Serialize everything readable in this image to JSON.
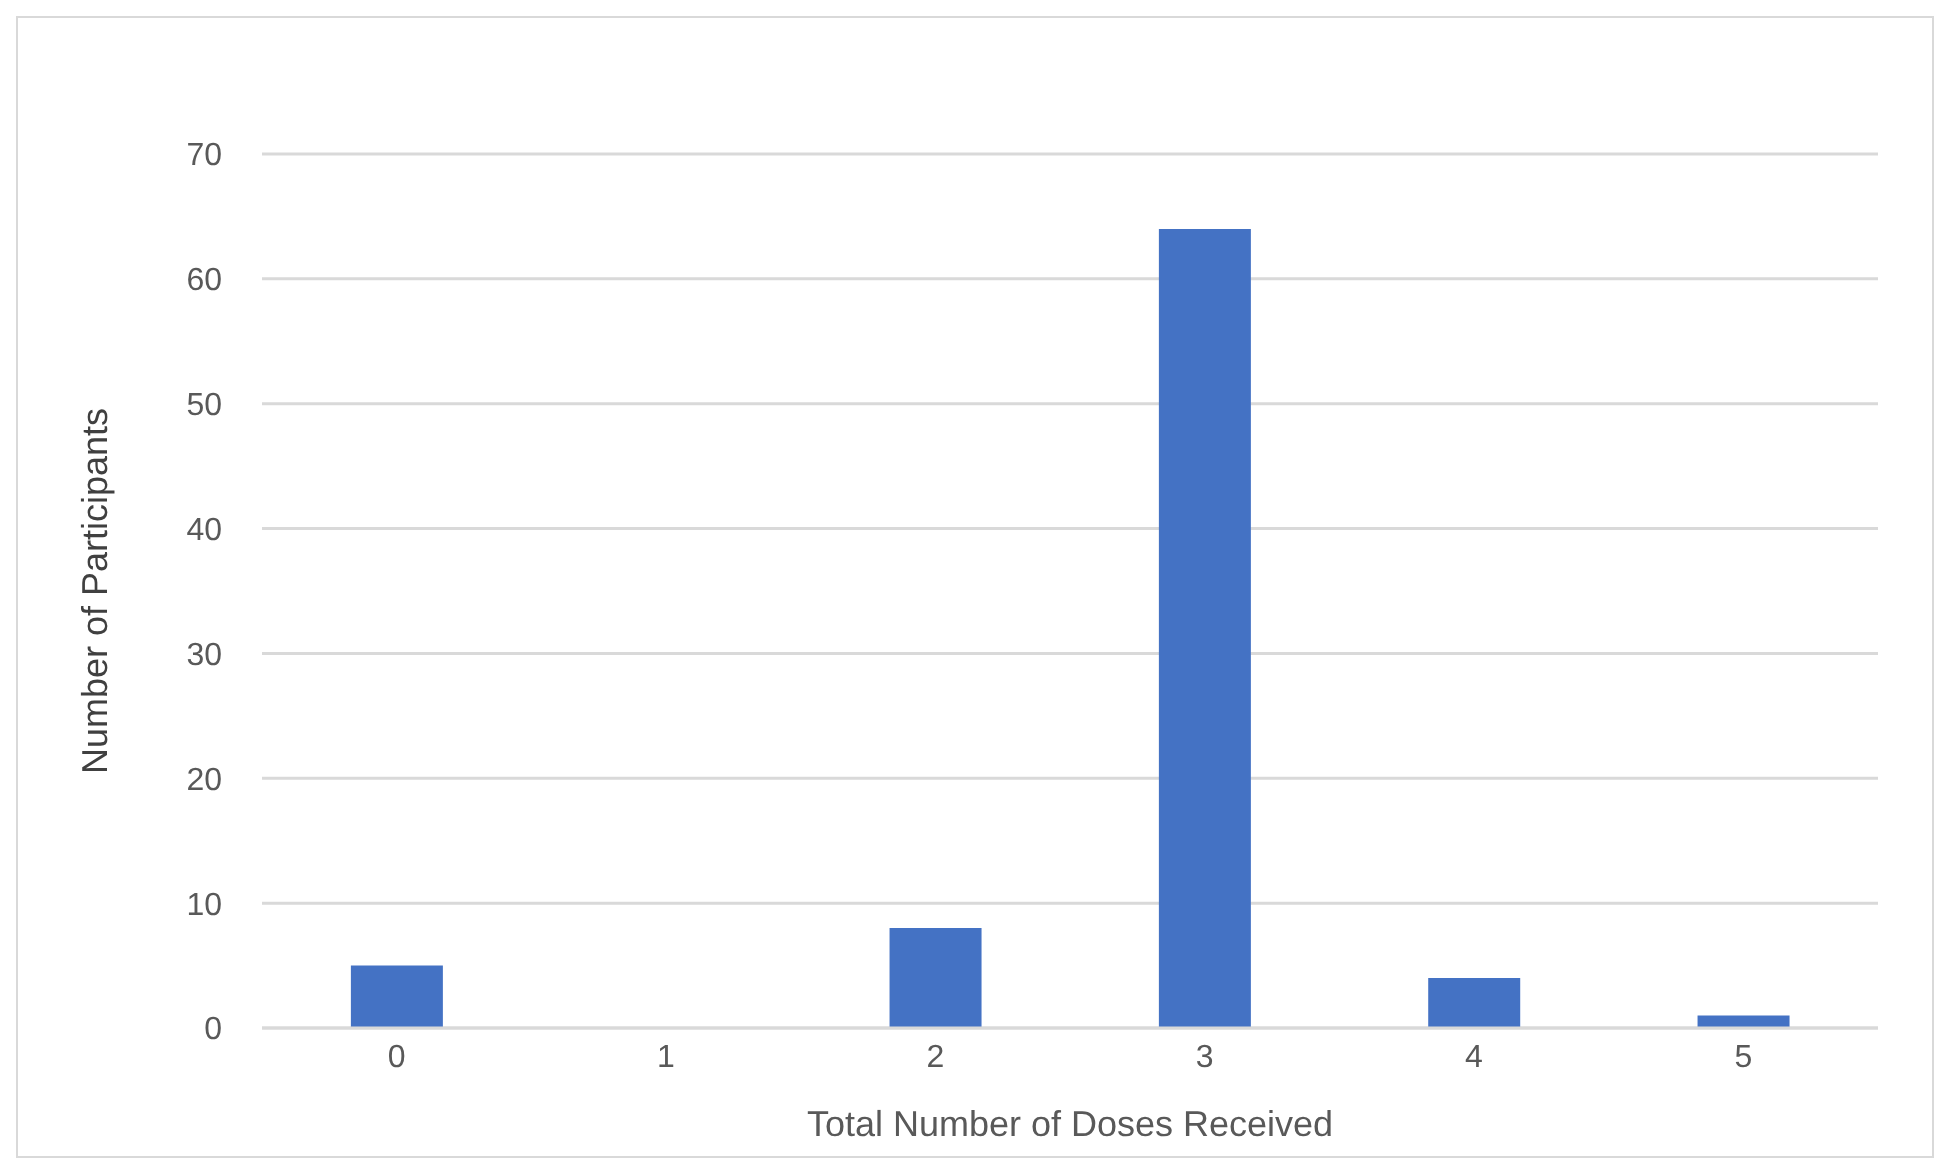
{
  "chart_data": {
    "type": "bar",
    "xlabel": "Total Number of Doses Received",
    "ylabel": "Number of Participants",
    "categories": [
      "0",
      "1",
      "2",
      "3",
      "4",
      "5"
    ],
    "values": [
      5,
      0,
      8,
      64,
      4,
      1
    ],
    "color": "#4472c4",
    "ylim": [
      0,
      70
    ],
    "yticks": [
      0,
      10,
      20,
      30,
      40,
      50,
      60,
      70
    ],
    "grid": "y"
  }
}
